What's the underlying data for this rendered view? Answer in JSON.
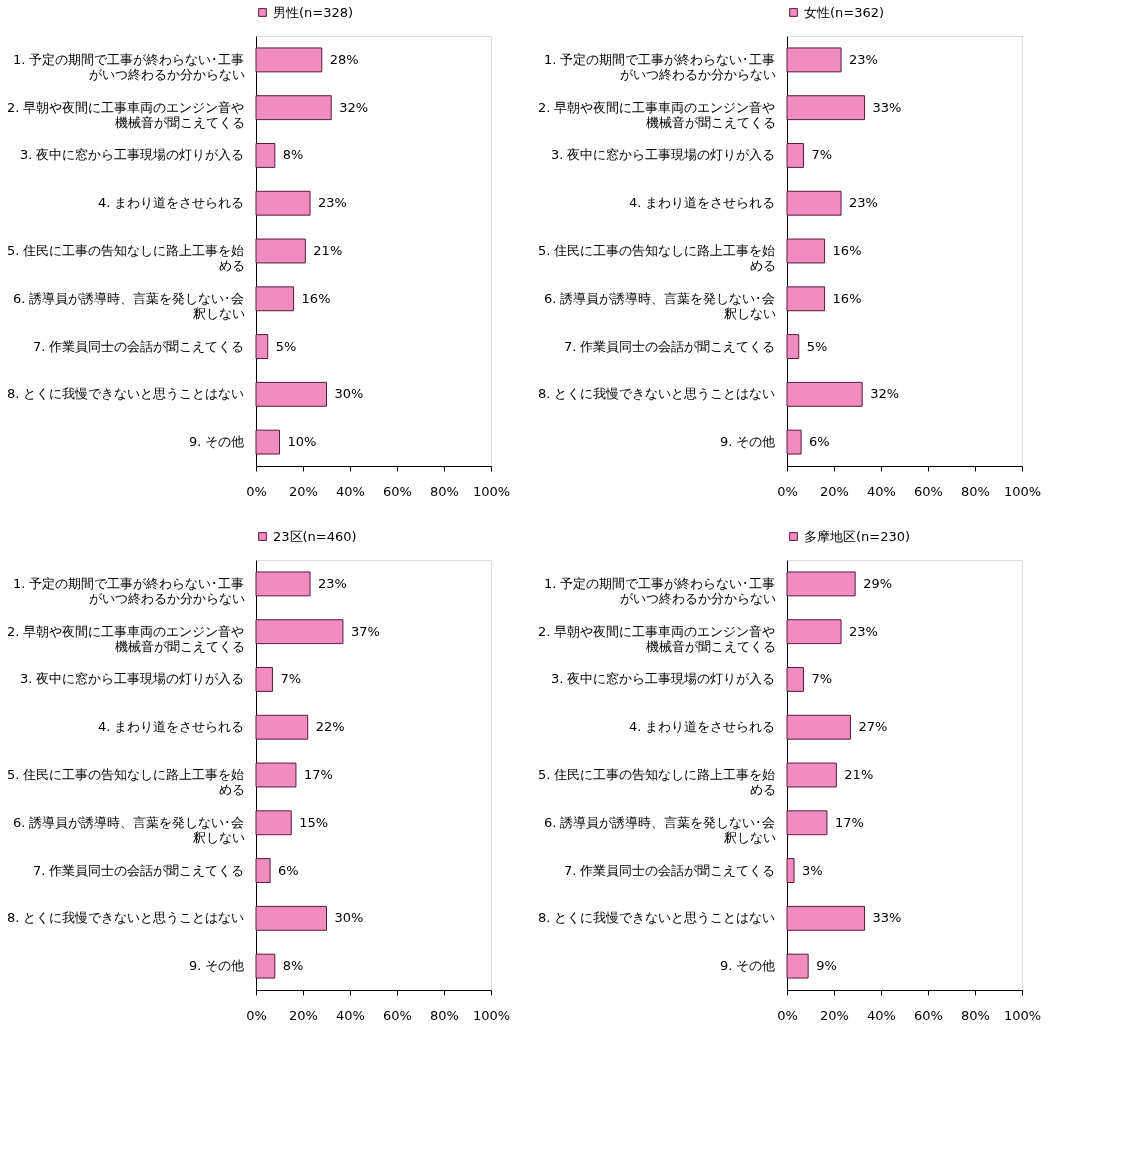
{
  "chart_data": [
    {
      "type": "bar",
      "orientation": "horizontal",
      "legend": "top",
      "grid": false,
      "data_labels": false,
      "categories": [
        "1. 予定の期間で工事が終わらない･工事がいつ終わるか分からない",
        "2. 早朝や夜間に工事車両のエンジン音や機械音が聞こえてくる",
        "3. 夜中に窓から工事現場の灯りが入る",
        "4. まわり道をさせられる",
        "5. 住民に工事の告知なしに路上工事を始める",
        "6. 誘導員が誘導時、言葉を発しない･会釈しない",
        "7. 作業員同士の会話が聞こえてくる",
        "8. とくに我慢できないと思うことはない",
        "9. その他"
      ],
      "series": [
        {
          "name": "男性(n=328)",
          "color": "#f08cc0",
          "values": [
            28,
            32,
            8,
            23,
            21,
            16,
            5,
            30,
            10
          ],
          "value_labels": [
            "28%",
            "32%",
            "8%",
            "23%",
            "21%",
            "16%",
            "5%",
            "30%",
            "10%"
          ]
        }
      ],
      "xlim": [
        0,
        100
      ],
      "xticks": [
        {
          "value": 0,
          "label": "0%"
        },
        {
          "value": 20,
          "label": "20%"
        },
        {
          "value": 40,
          "label": "40%"
        },
        {
          "value": 60,
          "label": "60%"
        },
        {
          "value": 80,
          "label": "80%"
        },
        {
          "value": 100,
          "label": "100%"
        }
      ]
    },
    {
      "type": "bar",
      "orientation": "horizontal",
      "legend": "top",
      "grid": false,
      "data_labels": false,
      "categories": [
        "1. 予定の期間で工事が終わらない･工事がいつ終わるか分からない",
        "2. 早朝や夜間に工事車両のエンジン音や機械音が聞こえてくる",
        "3. 夜中に窓から工事現場の灯りが入る",
        "4. まわり道をさせられる",
        "5. 住民に工事の告知なしに路上工事を始める",
        "6. 誘導員が誘導時、言葉を発しない･会釈しない",
        "7. 作業員同士の会話が聞こえてくる",
        "8. とくに我慢できないと思うことはない",
        "9. その他"
      ],
      "series": [
        {
          "name": "女性(n=362)",
          "color": "#f08cc0",
          "values": [
            23,
            33,
            7,
            23,
            16,
            16,
            5,
            32,
            6
          ],
          "value_labels": [
            "23%",
            "33%",
            "7%",
            "23%",
            "16%",
            "16%",
            "5%",
            "32%",
            "6%"
          ]
        }
      ],
      "xlim": [
        0,
        100
      ],
      "xticks": [
        {
          "value": 0,
          "label": "0%"
        },
        {
          "value": 20,
          "label": "20%"
        },
        {
          "value": 40,
          "label": "40%"
        },
        {
          "value": 60,
          "label": "60%"
        },
        {
          "value": 80,
          "label": "80%"
        },
        {
          "value": 100,
          "label": "100%"
        }
      ]
    },
    {
      "type": "bar",
      "orientation": "horizontal",
      "legend": "top",
      "grid": false,
      "data_labels": false,
      "categories": [
        "1. 予定の期間で工事が終わらない･工事がいつ終わるか分からない",
        "2. 早朝や夜間に工事車両のエンジン音や機械音が聞こえてくる",
        "3. 夜中に窓から工事現場の灯りが入る",
        "4. まわり道をさせられる",
        "5. 住民に工事の告知なしに路上工事を始める",
        "6. 誘導員が誘導時、言葉を発しない･会釈しない",
        "7. 作業員同士の会話が聞こえてくる",
        "8. とくに我慢できないと思うことはない",
        "9. その他"
      ],
      "series": [
        {
          "name": "23区(n=460)",
          "color": "#f08cc0",
          "values": [
            23,
            37,
            7,
            22,
            17,
            15,
            6,
            30,
            8
          ],
          "value_labels": [
            "23%",
            "37%",
            "7%",
            "22%",
            "17%",
            "15%",
            "6%",
            "30%",
            "8%"
          ]
        }
      ],
      "xlim": [
        0,
        100
      ],
      "xticks": [
        {
          "value": 0,
          "label": "0%"
        },
        {
          "value": 20,
          "label": "20%"
        },
        {
          "value": 40,
          "label": "40%"
        },
        {
          "value": 60,
          "label": "60%"
        },
        {
          "value": 80,
          "label": "80%"
        },
        {
          "value": 100,
          "label": "100%"
        }
      ]
    },
    {
      "type": "bar",
      "orientation": "horizontal",
      "legend": "top",
      "grid": false,
      "data_labels": false,
      "categories": [
        "1. 予定の期間で工事が終わらない･工事がいつ終わるか分からない",
        "2. 早朝や夜間に工事車両のエンジン音や機械音が聞こえてくる",
        "3. 夜中に窓から工事現場の灯りが入る",
        "4. まわり道をさせられる",
        "5. 住民に工事の告知なしに路上工事を始める",
        "6. 誘導員が誘導時、言葉を発しない･会釈しない",
        "7. 作業員同士の会話が聞こえてくる",
        "8. とくに我慢できないと思うことはない",
        "9. その他"
      ],
      "series": [
        {
          "name": "多摩地区(n=230)",
          "color": "#f08cc0",
          "values": [
            29,
            23,
            7,
            27,
            21,
            17,
            3,
            33,
            9
          ],
          "value_labels": [
            "29%",
            "23%",
            "7%",
            "27%",
            "21%",
            "17%",
            "3%",
            "33%",
            "9%"
          ]
        }
      ],
      "xlim": [
        0,
        100
      ],
      "xticks": [
        {
          "value": 0,
          "label": "0%"
        },
        {
          "value": 20,
          "label": "20%"
        },
        {
          "value": 40,
          "label": "40%"
        },
        {
          "value": 60,
          "label": "60%"
        },
        {
          "value": 80,
          "label": "80%"
        },
        {
          "value": 100,
          "label": "100%"
        }
      ]
    }
  ]
}
